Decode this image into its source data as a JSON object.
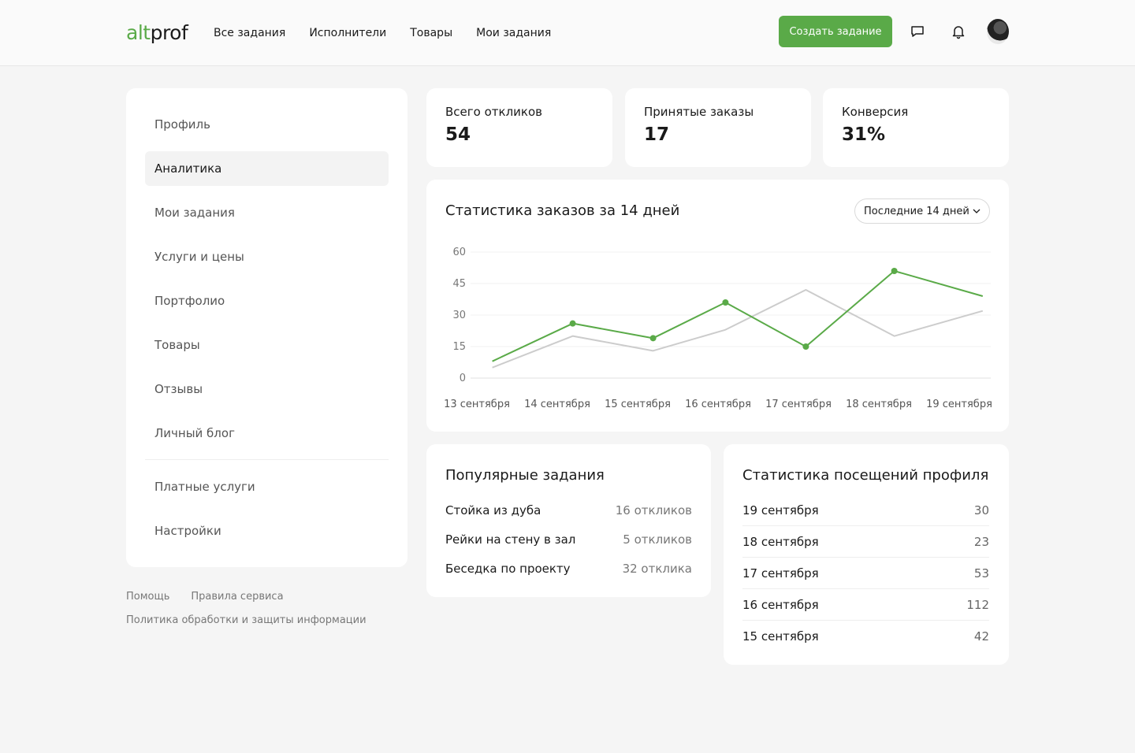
{
  "header": {
    "logo_alt": "alt",
    "logo_prof": "prof",
    "nav": [
      "Все задания",
      "Исполнители",
      "Товары",
      "Мои задания"
    ],
    "create_button": "Создать задание",
    "icons": [
      "chat-icon",
      "bell-icon"
    ]
  },
  "sidebar": {
    "items": [
      {
        "label": "Профиль",
        "active": false
      },
      {
        "label": "Аналитика",
        "active": true
      },
      {
        "label": "Мои задания",
        "active": false
      },
      {
        "label": "Услуги и цены",
        "active": false
      },
      {
        "label": "Портфолио",
        "active": false
      },
      {
        "label": "Товары",
        "active": false
      },
      {
        "label": "Отзывы",
        "active": false
      },
      {
        "label": "Личный блог",
        "active": false
      }
    ],
    "secondary_items": [
      {
        "label": "Платные услуги"
      },
      {
        "label": "Настройки"
      }
    ]
  },
  "footer": {
    "help": "Помощь",
    "rules": "Правила сервиса",
    "policy": "Политика обработки и защиты информации"
  },
  "stats": [
    {
      "label": "Всего откликов",
      "value": "54"
    },
    {
      "label": "Принятые заказы",
      "value": "17"
    },
    {
      "label": "Конверсия",
      "value": "31%"
    }
  ],
  "chart_card": {
    "title": "Статистика заказов за 14 дней",
    "period": "Последние 14 дней"
  },
  "chart_data": {
    "type": "line",
    "categories": [
      "13 сентября",
      "14 сентября",
      "15 сентября",
      "16 сентября",
      "17 сентября",
      "18 сентября",
      "19 сентября"
    ],
    "x": [
      0,
      1,
      2,
      3,
      4,
      5,
      6
    ],
    "yticks": [
      0,
      15,
      30,
      45,
      60
    ],
    "ylim": [
      0,
      60
    ],
    "grid": true,
    "series": [
      {
        "color": "#5aaa48",
        "markers": true,
        "x": [
          0.3,
          1.3,
          2.3,
          3.2,
          4.2,
          5.3,
          6.4
        ],
        "values": [
          8,
          26,
          19,
          36,
          15,
          51,
          39
        ]
      },
      {
        "color": "#cccccc",
        "markers": false,
        "x": [
          0.3,
          1.3,
          2.3,
          3.2,
          4.2,
          5.3,
          6.4
        ],
        "values": [
          5,
          20,
          13,
          23,
          42,
          20,
          32
        ]
      }
    ]
  },
  "popular": {
    "title": "Популярные задания",
    "items": [
      {
        "name": "Стойка из дуба",
        "count": "16 откликов"
      },
      {
        "name": "Рейки на стену в зал",
        "count": "5 откликов"
      },
      {
        "name": "Беседка по проекту",
        "count": "32 отклика"
      }
    ]
  },
  "visits": {
    "title": "Статистика посещений профиля",
    "items": [
      {
        "date": "19 сентября",
        "value": "30"
      },
      {
        "date": "18 сентября",
        "value": "23"
      },
      {
        "date": "17 сентября",
        "value": "53"
      },
      {
        "date": "16 сентября",
        "value": "112"
      },
      {
        "date": "15 сентября",
        "value": "42"
      }
    ]
  }
}
